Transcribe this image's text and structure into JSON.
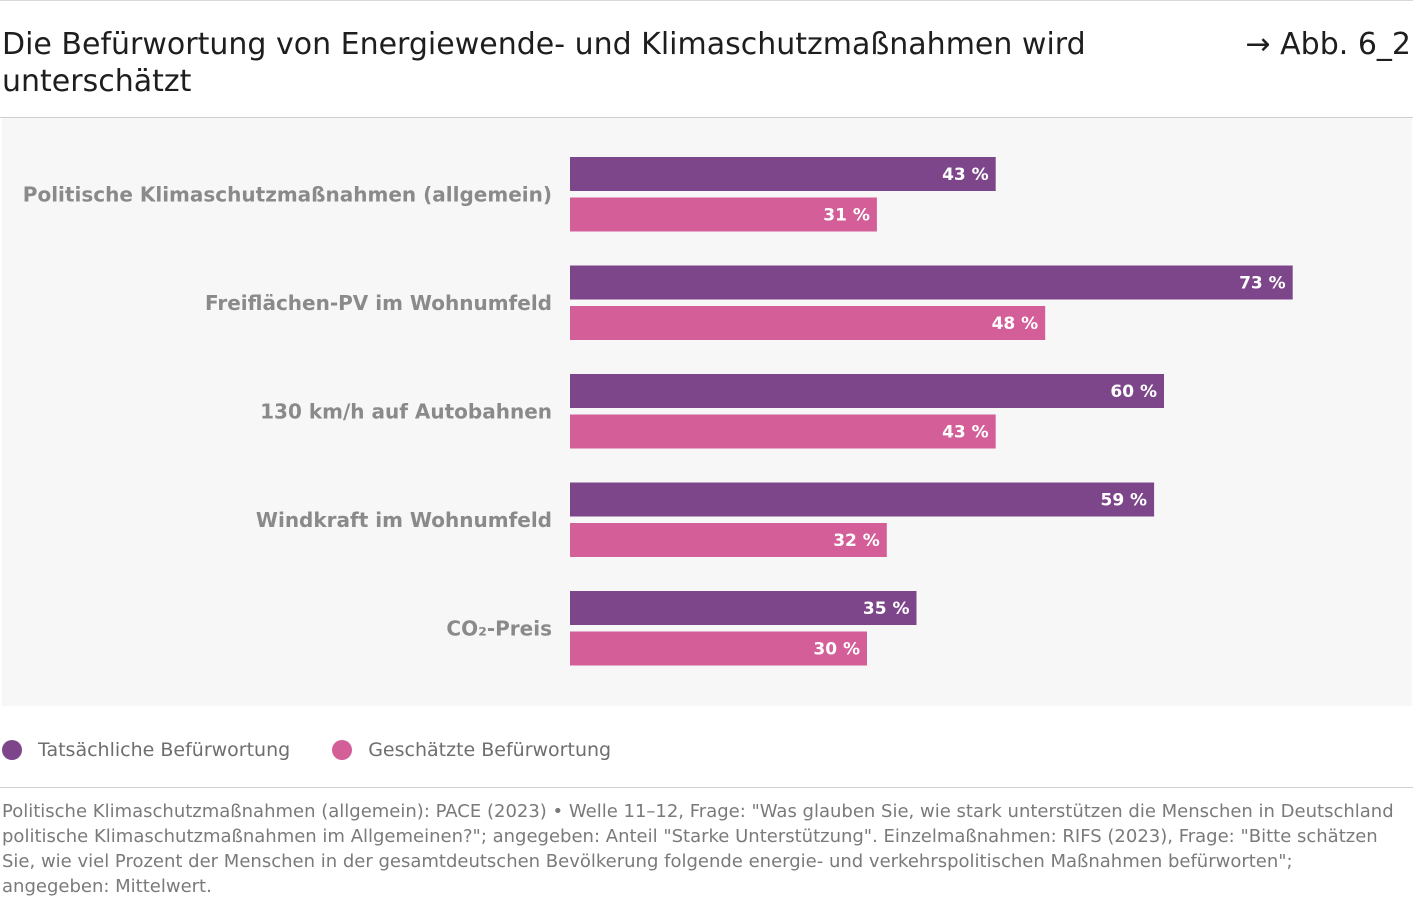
{
  "header": {
    "title": "Die Befürwortung von Energiewende- und Klimaschutzmaßnahmen wird unterschätzt",
    "figure_ref": "→ Abb. 6_2"
  },
  "colors": {
    "actual": "#7e468a",
    "estimated": "#d45e98",
    "plot_background": "#f7f7f7"
  },
  "chart_data": {
    "type": "bar",
    "orientation": "horizontal",
    "title": "Die Befürwortung von Energiewende- und Klimaschutzmaßnahmen wird unterschätzt",
    "xlabel": "",
    "ylabel": "",
    "unit": "%",
    "xlim": [
      0,
      100
    ],
    "grid": false,
    "legend_position": "bottom-left",
    "categories": [
      "Politische Klimaschutzmaßnahmen (allgemein)",
      "Freiflächen-PV im Wohnumfeld",
      "130 km/h auf Autobahnen",
      "Windkraft im Wohnumfeld",
      "CO₂-Preis"
    ],
    "series": [
      {
        "name": "Tatsächliche Befürwortung",
        "color": "#7e468a",
        "values": [
          43,
          73,
          60,
          59,
          35
        ]
      },
      {
        "name": "Geschätzte Befürwortung",
        "color": "#d45e98",
        "values": [
          31,
          48,
          43,
          32,
          30
        ]
      }
    ]
  },
  "source_note": "Politische Klimaschutzmaßnahmen (allgemein): PACE (2023) • Welle 11–12, Frage: \"Was glauben Sie, wie stark unterstützen die Menschen in Deutschland politische Klimaschutzmaßnahmen im Allgemeinen?\"; angegeben: Anteil \"Starke Unterstützung\". Einzelmaßnahmen: RIFS (2023), Frage: \"Bitte schätzen Sie, wie viel Prozent der Menschen in der gesamtdeutschen Bevölkerung folgende energie- und verkehrspolitischen Maßnahmen befürworten\"; angegeben: Mittelwert."
}
